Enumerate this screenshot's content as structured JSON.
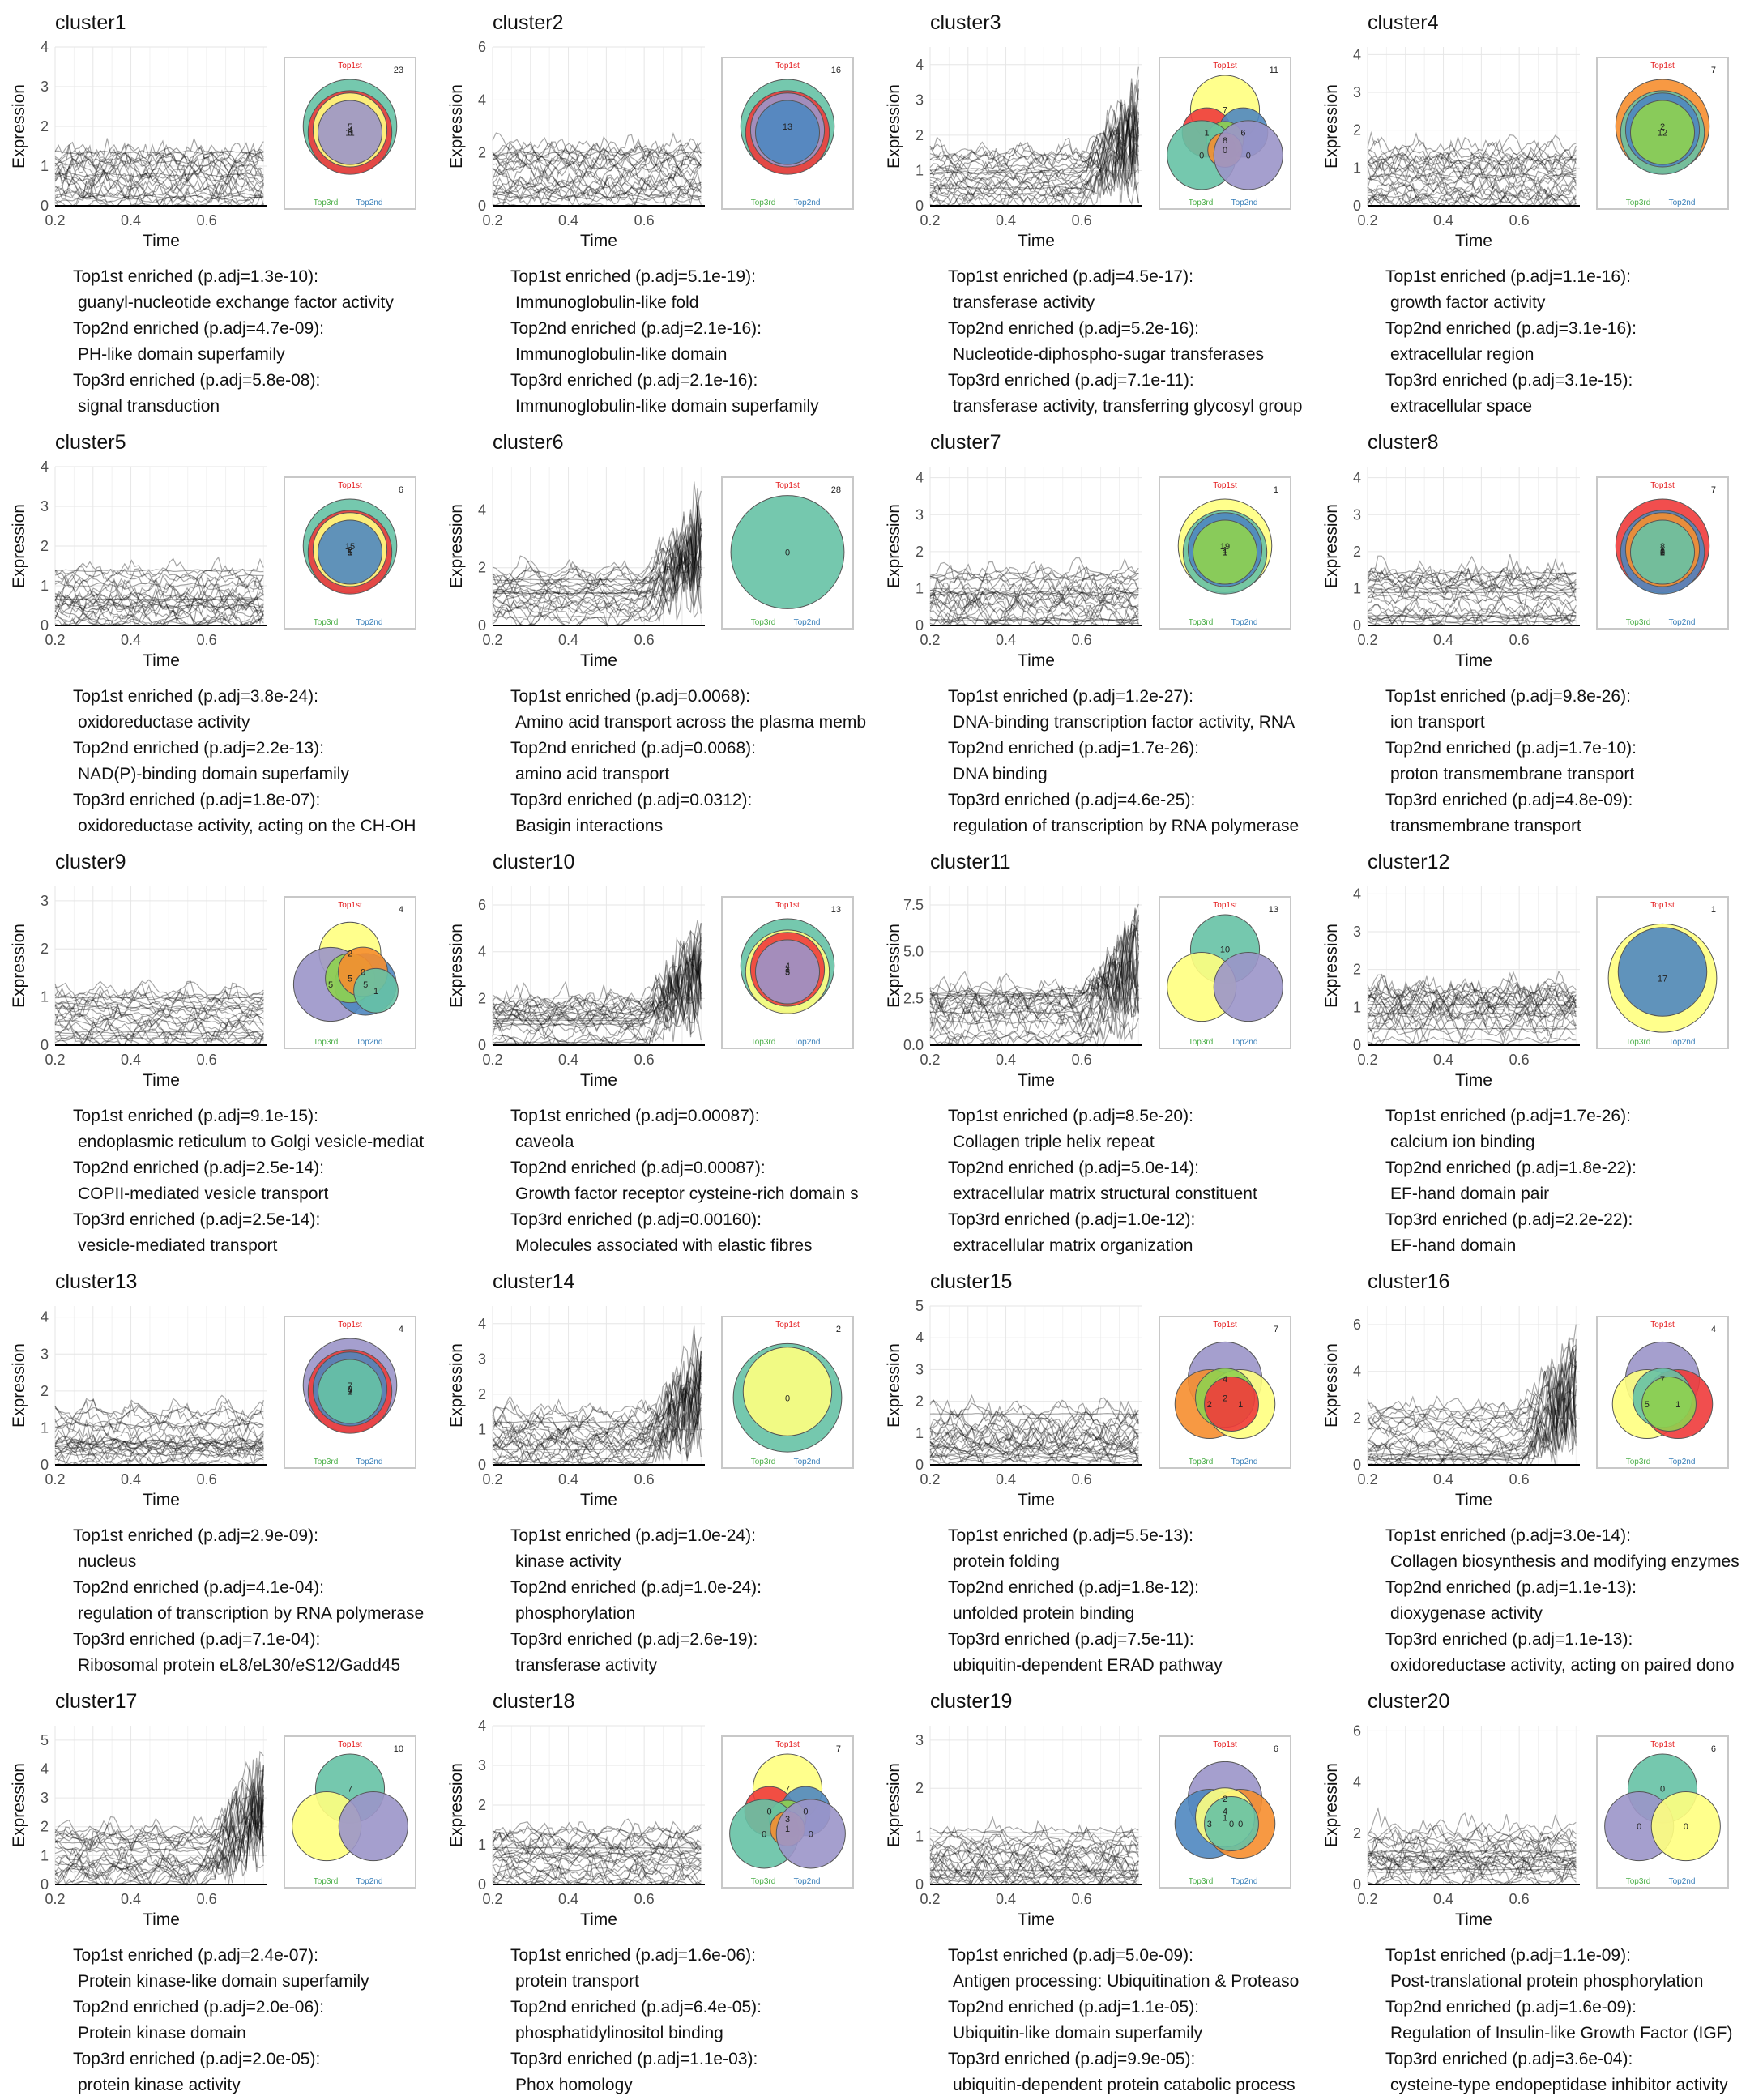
{
  "axes": {
    "xlabel": "Time",
    "ylabel": "Expression"
  },
  "venn_labels": {
    "top1": "Top1st",
    "top2": "Top2nd",
    "top3": "Top3rd"
  },
  "colors": {
    "top1": "#e41a1c",
    "top2": "#377eb8",
    "top3": "#4daf4a",
    "teal": "#66c2a5",
    "red": "#f03b3b",
    "yellow": "#ffff80",
    "blue": "#4f87c0",
    "purple": "#9b95c9",
    "green": "#8fd14f",
    "orange": "#f68e2f"
  },
  "chart_data": [
    {
      "title": "cluster1",
      "type": "line",
      "xticks": [
        "0.2",
        "0.4",
        "0.6"
      ],
      "yticks": [
        "0",
        "1",
        "2",
        "3",
        "4"
      ],
      "ymax": 4,
      "venn": {
        "outside": "23",
        "counts": [
          "5",
          "6",
          "4",
          "11"
        ],
        "fills": [
          "teal",
          "red",
          "yellow",
          "purple"
        ]
      },
      "enrich": [
        {
          "head": "Top1st enriched (p.adj=1.3e-10):",
          "term": "guanyl-nucleotide exchange factor activity"
        },
        {
          "head": "Top2nd enriched (p.adj=4.7e-09):",
          "term": "PH-like domain superfamily"
        },
        {
          "head": "Top3rd enriched (p.adj=5.8e-08):",
          "term": "signal transduction"
        }
      ]
    },
    {
      "title": "cluster2",
      "type": "line",
      "xticks": [
        "0.2",
        "0.4",
        "0.6"
      ],
      "yticks": [
        "0",
        "2",
        "4",
        "6"
      ],
      "ymax": 6,
      "venn": {
        "outside": "16",
        "counts": [
          "13"
        ],
        "fills": [
          "teal",
          "red",
          "purple",
          "blue"
        ]
      },
      "enrich": [
        {
          "head": "Top1st enriched (p.adj=5.1e-19):",
          "term": "Immunoglobulin-like fold"
        },
        {
          "head": "Top2nd enriched (p.adj=2.1e-16):",
          "term": "Immunoglobulin-like domain"
        },
        {
          "head": "Top3rd enriched (p.adj=2.1e-16):",
          "term": "Immunoglobulin-like domain superfamily"
        }
      ]
    },
    {
      "title": "cluster3",
      "type": "line",
      "xticks": [
        "0.2",
        "0.4",
        "0.6"
      ],
      "yticks": [
        "0",
        "1",
        "2",
        "3",
        "4"
      ],
      "ymax": 4.5,
      "venn": {
        "outside": "11",
        "counts": [
          "7",
          "1",
          "6",
          "8",
          "0",
          "0",
          "0"
        ],
        "fills": [
          "yellow",
          "red",
          "blue",
          "green",
          "teal",
          "orange",
          "purple"
        ]
      },
      "enrich": [
        {
          "head": "Top1st enriched (p.adj=4.5e-17):",
          "term": "transferase activity"
        },
        {
          "head": "Top2nd enriched (p.adj=5.2e-16):",
          "term": "Nucleotide-diphospho-sugar transferases"
        },
        {
          "head": "Top3rd enriched (p.adj=7.1e-11):",
          "term": "transferase activity, transferring glycosyl group"
        }
      ]
    },
    {
      "title": "cluster4",
      "type": "line",
      "xticks": [
        "0.2",
        "0.4",
        "0.6"
      ],
      "yticks": [
        "0",
        "1",
        "2",
        "3",
        "4"
      ],
      "ymax": 4.2,
      "venn": {
        "outside": "7",
        "counts": [
          "2",
          "12"
        ],
        "fills": [
          "orange",
          "teal",
          "blue",
          "green"
        ]
      },
      "enrich": [
        {
          "head": "Top1st enriched (p.adj=1.1e-16):",
          "term": "growth factor activity"
        },
        {
          "head": "Top2nd enriched (p.adj=3.1e-16):",
          "term": "extracellular region"
        },
        {
          "head": "Top3rd enriched (p.adj=3.1e-15):",
          "term": "extracellular space"
        }
      ]
    },
    {
      "title": "cluster5",
      "type": "line",
      "xticks": [
        "0.2",
        "0.4",
        "0.6"
      ],
      "yticks": [
        "0",
        "1",
        "2",
        "3",
        "4"
      ],
      "ymax": 4,
      "venn": {
        "outside": "6",
        "counts": [
          "15",
          "5",
          "2",
          "1"
        ],
        "fills": [
          "teal",
          "red",
          "yellow",
          "blue"
        ]
      },
      "enrich": [
        {
          "head": "Top1st enriched (p.adj=3.8e-24):",
          "term": "oxidoreductase activity"
        },
        {
          "head": "Top2nd enriched (p.adj=2.2e-13):",
          "term": "NAD(P)-binding domain superfamily"
        },
        {
          "head": "Top3rd enriched (p.adj=1.8e-07):",
          "term": "oxidoreductase activity, acting on the CH-OH"
        }
      ]
    },
    {
      "title": "cluster6",
      "type": "line",
      "xticks": [
        "0.2",
        "0.4",
        "0.6"
      ],
      "yticks": [
        "0",
        "2",
        "4"
      ],
      "ymax": 5.5,
      "venn": {
        "outside": "28",
        "counts": [
          "0"
        ],
        "fills": [
          "teal"
        ]
      },
      "enrich": [
        {
          "head": "Top1st enriched (p.adj=0.0068):",
          "term": "Amino acid transport across the plasma memb"
        },
        {
          "head": "Top2nd enriched (p.adj=0.0068):",
          "term": "amino acid transport"
        },
        {
          "head": "Top3rd enriched (p.adj=0.0312):",
          "term": "Basigin interactions"
        }
      ]
    },
    {
      "title": "cluster7",
      "type": "line",
      "xticks": [
        "0.2",
        "0.4",
        "0.6"
      ],
      "yticks": [
        "0",
        "1",
        "2",
        "3",
        "4"
      ],
      "ymax": 4.3,
      "venn": {
        "outside": "1",
        "counts": [
          "19",
          "1",
          "1",
          "1"
        ],
        "fills": [
          "yellow",
          "teal",
          "blue",
          "green"
        ]
      },
      "enrich": [
        {
          "head": "Top1st enriched (p.adj=1.2e-27):",
          "term": "DNA-binding transcription factor activity, RNA"
        },
        {
          "head": "Top2nd enriched (p.adj=1.7e-26):",
          "term": "DNA binding"
        },
        {
          "head": "Top3rd enriched (p.adj=4.6e-25):",
          "term": "regulation of transcription by RNA polymerase"
        }
      ]
    },
    {
      "title": "cluster8",
      "type": "line",
      "xticks": [
        "0.2",
        "0.4",
        "0.6"
      ],
      "yticks": [
        "0",
        "1",
        "2",
        "3",
        "4"
      ],
      "ymax": 4.3,
      "venn": {
        "outside": "7",
        "counts": [
          "8",
          "5",
          "1",
          "6",
          "2",
          "1",
          "0"
        ],
        "fills": [
          "red",
          "blue",
          "orange",
          "teal"
        ]
      },
      "enrich": [
        {
          "head": "Top1st enriched (p.adj=9.8e-26):",
          "term": "ion transport"
        },
        {
          "head": "Top2nd enriched (p.adj=1.7e-10):",
          "term": "proton transmembrane transport"
        },
        {
          "head": "Top3rd enriched (p.adj=4.8e-09):",
          "term": "transmembrane transport"
        }
      ]
    },
    {
      "title": "cluster9",
      "type": "line",
      "xticks": [
        "0.2",
        "0.4",
        "0.6"
      ],
      "yticks": [
        "0",
        "1",
        "2",
        "3"
      ],
      "ymax": 3.3,
      "venn": {
        "outside": "4",
        "counts": [
          "2",
          "5",
          "5",
          "5",
          "0",
          "1"
        ],
        "fills": [
          "yellow",
          "purple",
          "blue",
          "green",
          "orange",
          "teal"
        ]
      },
      "enrich": [
        {
          "head": "Top1st enriched (p.adj=9.1e-15):",
          "term": "endoplasmic reticulum to Golgi vesicle-mediat"
        },
        {
          "head": "Top2nd enriched (p.adj=2.5e-14):",
          "term": "COPII-mediated vesicle transport"
        },
        {
          "head": "Top3rd enriched (p.adj=2.5e-14):",
          "term": "vesicle-mediated transport"
        }
      ]
    },
    {
      "title": "cluster10",
      "type": "line",
      "xticks": [
        "0.2",
        "0.4",
        "0.6"
      ],
      "yticks": [
        "0",
        "2",
        "4",
        "6"
      ],
      "ymax": 6.8,
      "venn": {
        "outside": "13",
        "counts": [
          "4",
          "3",
          "1",
          "5"
        ],
        "fills": [
          "teal",
          "yellow",
          "red",
          "purple"
        ]
      },
      "enrich": [
        {
          "head": "Top1st enriched (p.adj=0.00087):",
          "term": "caveola"
        },
        {
          "head": "Top2nd enriched (p.adj=0.00087):",
          "term": "Growth factor receptor cysteine-rich domain s"
        },
        {
          "head": "Top3rd enriched (p.adj=0.00160):",
          "term": "Molecules associated with elastic fibres"
        }
      ]
    },
    {
      "title": "cluster11",
      "type": "line",
      "xticks": [
        "0.2",
        "0.4",
        "0.6"
      ],
      "yticks": [
        "0.0",
        "2.5",
        "5.0",
        "7.5"
      ],
      "ymax": 8.5,
      "venn": {
        "outside": "13",
        "counts": [
          "10"
        ],
        "fills": [
          "teal",
          "yellow",
          "purple"
        ]
      },
      "enrich": [
        {
          "head": "Top1st enriched (p.adj=8.5e-20):",
          "term": "Collagen triple helix repeat"
        },
        {
          "head": "Top2nd enriched (p.adj=5.0e-14):",
          "term": "extracellular matrix structural constituent"
        },
        {
          "head": "Top3rd enriched (p.adj=1.0e-12):",
          "term": "extracellular matrix organization"
        }
      ]
    },
    {
      "title": "cluster12",
      "type": "line",
      "xticks": [
        "0.2",
        "0.4",
        "0.6"
      ],
      "yticks": [
        "0",
        "1",
        "2",
        "3",
        "4"
      ],
      "ymax": 4.2,
      "venn": {
        "outside": "1",
        "counts": [
          "17"
        ],
        "fills": [
          "yellow",
          "blue"
        ]
      },
      "enrich": [
        {
          "head": "Top1st enriched (p.adj=1.7e-26):",
          "term": "calcium ion binding"
        },
        {
          "head": "Top2nd enriched (p.adj=1.8e-22):",
          "term": "EF-hand domain pair"
        },
        {
          "head": "Top3rd enriched (p.adj=2.2e-22):",
          "term": "EF-hand domain"
        }
      ]
    },
    {
      "title": "cluster13",
      "type": "line",
      "xticks": [
        "0.2",
        "0.4",
        "0.6"
      ],
      "yticks": [
        "0",
        "1",
        "2",
        "3",
        "4"
      ],
      "ymax": 4.3,
      "venn": {
        "outside": "4",
        "counts": [
          "7",
          "3",
          "8",
          "7",
          "1"
        ],
        "fills": [
          "purple",
          "red",
          "blue",
          "teal"
        ]
      },
      "enrich": [
        {
          "head": "Top1st enriched (p.adj=2.9e-09):",
          "term": "nucleus"
        },
        {
          "head": "Top2nd enriched (p.adj=4.1e-04):",
          "term": "regulation of transcription by RNA polymerase"
        },
        {
          "head": "Top3rd enriched (p.adj=7.1e-04):",
          "term": "Ribosomal protein eL8/eL30/eS12/Gadd45"
        }
      ]
    },
    {
      "title": "cluster14",
      "type": "line",
      "xticks": [
        "0.2",
        "0.4",
        "0.6"
      ],
      "yticks": [
        "0",
        "1",
        "2",
        "3",
        "4"
      ],
      "ymax": 4.5,
      "venn": {
        "outside": "2",
        "counts": [
          "0"
        ],
        "fills": [
          "teal",
          "yellow"
        ]
      },
      "enrich": [
        {
          "head": "Top1st enriched (p.adj=1.0e-24):",
          "term": "kinase activity"
        },
        {
          "head": "Top2nd enriched (p.adj=1.0e-24):",
          "term": "phosphorylation"
        },
        {
          "head": "Top3rd enriched (p.adj=2.6e-19):",
          "term": "transferase activity"
        }
      ]
    },
    {
      "title": "cluster15",
      "type": "line",
      "xticks": [
        "0.2",
        "0.4",
        "0.6"
      ],
      "yticks": [
        "0",
        "1",
        "2",
        "3",
        "4",
        "5"
      ],
      "ymax": 5,
      "venn": {
        "outside": "7",
        "counts": [
          "4",
          "2",
          "1",
          "2"
        ],
        "fills": [
          "purple",
          "orange",
          "yellow",
          "green",
          "red"
        ]
      },
      "enrich": [
        {
          "head": "Top1st enriched (p.adj=5.5e-13):",
          "term": "protein folding"
        },
        {
          "head": "Top2nd enriched (p.adj=1.8e-12):",
          "term": "unfolded protein binding"
        },
        {
          "head": "Top3rd enriched (p.adj=7.5e-11):",
          "term": "ubiquitin-dependent ERAD pathway"
        }
      ]
    },
    {
      "title": "cluster16",
      "type": "line",
      "xticks": [
        "0.2",
        "0.4",
        "0.6"
      ],
      "yticks": [
        "0",
        "2",
        "4",
        "6"
      ],
      "ymax": 6.8,
      "venn": {
        "outside": "4",
        "counts": [
          "7",
          "5",
          "1"
        ],
        "fills": [
          "purple",
          "yellow",
          "red",
          "teal",
          "green"
        ]
      },
      "enrich": [
        {
          "head": "Top1st enriched (p.adj=3.0e-14):",
          "term": "Collagen biosynthesis and modifying enzymes"
        },
        {
          "head": "Top2nd enriched (p.adj=1.1e-13):",
          "term": "dioxygenase activity"
        },
        {
          "head": "Top3rd enriched (p.adj=1.1e-13):",
          "term": "oxidoreductase activity, acting on paired dono"
        }
      ]
    },
    {
      "title": "cluster17",
      "type": "line",
      "xticks": [
        "0.2",
        "0.4",
        "0.6"
      ],
      "yticks": [
        "0",
        "1",
        "2",
        "3",
        "4",
        "5"
      ],
      "ymax": 5.5,
      "venn": {
        "outside": "10",
        "counts": [
          "7"
        ],
        "fills": [
          "teal",
          "yellow",
          "purple"
        ]
      },
      "enrich": [
        {
          "head": "Top1st enriched (p.adj=2.4e-07):",
          "term": "Protein kinase-like domain superfamily"
        },
        {
          "head": "Top2nd enriched (p.adj=2.0e-06):",
          "term": "Protein kinase domain"
        },
        {
          "head": "Top3rd enriched (p.adj=2.0e-05):",
          "term": "protein kinase activity"
        }
      ]
    },
    {
      "title": "cluster18",
      "type": "line",
      "xticks": [
        "0.2",
        "0.4",
        "0.6"
      ],
      "yticks": [
        "0",
        "1",
        "2",
        "3",
        "4"
      ],
      "ymax": 4,
      "venn": {
        "outside": "7",
        "counts": [
          "7",
          "0",
          "0",
          "3",
          "0",
          "1",
          "0"
        ],
        "fills": [
          "yellow",
          "red",
          "blue",
          "green",
          "teal",
          "orange",
          "purple"
        ]
      },
      "enrich": [
        {
          "head": "Top1st enriched (p.adj=1.6e-06):",
          "term": "protein transport"
        },
        {
          "head": "Top2nd enriched (p.adj=6.4e-05):",
          "term": "phosphatidylinositol binding"
        },
        {
          "head": "Top3rd enriched (p.adj=1.1e-03):",
          "term": "Phox homology"
        }
      ]
    },
    {
      "title": "cluster19",
      "type": "line",
      "xticks": [
        "0.2",
        "0.4",
        "0.6"
      ],
      "yticks": [
        "0",
        "1",
        "2",
        "3"
      ],
      "ymax": 3.3,
      "venn": {
        "outside": "6",
        "counts": [
          "2",
          "3",
          "0",
          "1",
          "0",
          "4"
        ],
        "fills": [
          "purple",
          "blue",
          "orange",
          "yellow",
          "teal"
        ]
      },
      "enrich": [
        {
          "head": "Top1st enriched (p.adj=5.0e-09):",
          "term": "Antigen processing: Ubiquitination & Proteaso"
        },
        {
          "head": "Top2nd enriched (p.adj=1.1e-05):",
          "term": "Ubiquitin-like domain superfamily"
        },
        {
          "head": "Top3rd enriched (p.adj=9.9e-05):",
          "term": "ubiquitin-dependent protein catabolic process"
        }
      ]
    },
    {
      "title": "cluster20",
      "type": "line",
      "xticks": [
        "0.2",
        "0.4",
        "0.6"
      ],
      "yticks": [
        "0",
        "2",
        "4",
        "6"
      ],
      "ymax": 6.2,
      "venn": {
        "outside": "6",
        "counts": [
          "0",
          "0",
          "0"
        ],
        "fills": [
          "teal",
          "purple",
          "yellow"
        ]
      },
      "enrich": [
        {
          "head": "Top1st enriched (p.adj=1.1e-09):",
          "term": "Post-translational protein phosphorylation"
        },
        {
          "head": "Top2nd enriched (p.adj=1.6e-09):",
          "term": "Regulation of Insulin-like Growth Factor (IGF)"
        },
        {
          "head": "Top3rd enriched (p.adj=3.6e-04):",
          "term": "cysteine-type endopeptidase inhibitor activity"
        }
      ]
    }
  ]
}
